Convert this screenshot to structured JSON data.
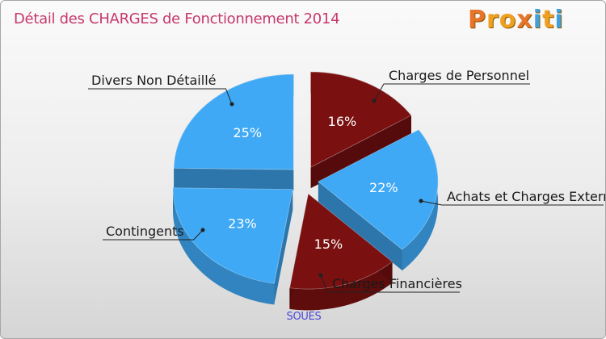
{
  "title": "Détail des CHARGES de Fonctionnement 2014",
  "logo": {
    "text": "Proxiti",
    "letters": [
      "P",
      "r",
      "o",
      "x",
      "i",
      "t",
      "i"
    ]
  },
  "subtitle": "SOUES",
  "colors": {
    "title": "#c7386c",
    "blue": "#3fa9f5",
    "dark_red": "#7a1010",
    "subtitle": "#4a4ad6",
    "logo_letters": [
      "#e8732a",
      "#f0a020",
      "#f0a020",
      "#e8732a",
      "#3fa0e0",
      "#f0a020",
      "#3fa0e0"
    ]
  },
  "chart_data": {
    "type": "pie",
    "title": "Détail des CHARGES de Fonctionnement 2014",
    "slices": [
      {
        "label": "Charges de Personnel",
        "value": 16,
        "display": "16%",
        "color": "#7a1010"
      },
      {
        "label": "Achats et Charges Externes",
        "value": 22,
        "display": "22%",
        "color": "#3fa9f5"
      },
      {
        "label": "Charges Financières",
        "value": 15,
        "display": "15%",
        "color": "#7a1010"
      },
      {
        "label": "Contingents",
        "value": 23,
        "display": "23%",
        "color": "#3fa9f5"
      },
      {
        "label": "Divers Non Détaillé",
        "value": 25,
        "display": "25%",
        "color": "#3fa9f5"
      }
    ]
  }
}
